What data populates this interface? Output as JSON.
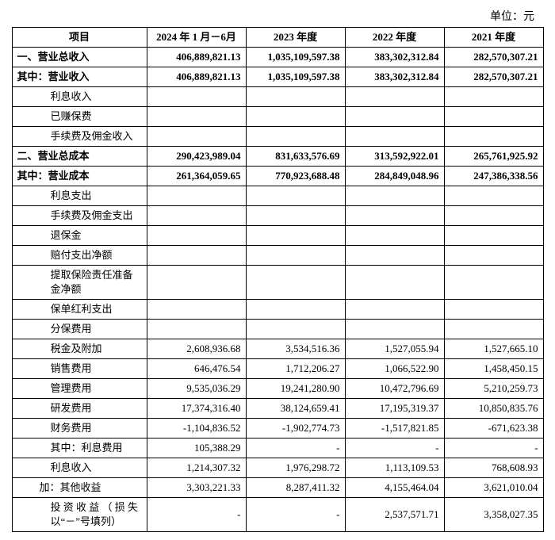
{
  "unit_label": "单位：元",
  "columns": {
    "item": "项目",
    "c1": "2024 年 1 月－6月",
    "c2": "2023 年度",
    "c3": "2022 年度",
    "c4": "2021 年度"
  },
  "rows": [
    {
      "label": "一、营业总收入",
      "bold": true,
      "indent": "ind1",
      "v": [
        "406,889,821.13",
        "1,035,109,597.38",
        "383,302,312.84",
        "282,570,307.21"
      ]
    },
    {
      "label": "其中：营业收入",
      "bold": true,
      "indent": "ind1",
      "v": [
        "406,889,821.13",
        "1,035,109,597.38",
        "383,302,312.84",
        "282,570,307.21"
      ]
    },
    {
      "label": "利息收入",
      "bold": false,
      "indent": "ind2",
      "v": [
        "",
        "",
        "",
        ""
      ]
    },
    {
      "label": "已赚保费",
      "bold": false,
      "indent": "ind2",
      "v": [
        "",
        "",
        "",
        ""
      ]
    },
    {
      "label": "手续费及佣金收入",
      "bold": false,
      "indent": "ind2",
      "v": [
        "",
        "",
        "",
        ""
      ]
    },
    {
      "label": "二、营业总成本",
      "bold": true,
      "indent": "ind1",
      "v": [
        "290,423,989.04",
        "831,633,576.69",
        "313,592,922.01",
        "265,761,925.92"
      ]
    },
    {
      "label": "其中：营业成本",
      "bold": true,
      "indent": "ind1",
      "v": [
        "261,364,059.65",
        "770,923,688.48",
        "284,849,048.96",
        "247,386,338.56"
      ]
    },
    {
      "label": "利息支出",
      "bold": false,
      "indent": "ind2",
      "v": [
        "",
        "",
        "",
        ""
      ]
    },
    {
      "label": "手续费及佣金支出",
      "bold": false,
      "indent": "ind2",
      "v": [
        "",
        "",
        "",
        ""
      ]
    },
    {
      "label": "退保金",
      "bold": false,
      "indent": "ind2",
      "v": [
        "",
        "",
        "",
        ""
      ]
    },
    {
      "label": "赔付支出净额",
      "bold": false,
      "indent": "ind2",
      "v": [
        "",
        "",
        "",
        ""
      ]
    },
    {
      "label": "提取保险责任准备金净额",
      "bold": false,
      "indent": "ind2",
      "tall": true,
      "v": [
        "",
        "",
        "",
        ""
      ]
    },
    {
      "label": "保单红利支出",
      "bold": false,
      "indent": "ind2",
      "v": [
        "",
        "",
        "",
        ""
      ]
    },
    {
      "label": "分保费用",
      "bold": false,
      "indent": "ind2",
      "v": [
        "",
        "",
        "",
        ""
      ]
    },
    {
      "label": "税金及附加",
      "bold": false,
      "indent": "ind2",
      "v": [
        "2,608,936.68",
        "3,534,516.36",
        "1,527,055.94",
        "1,527,665.10"
      ]
    },
    {
      "label": "销售费用",
      "bold": false,
      "indent": "ind2",
      "v": [
        "646,476.54",
        "1,712,206.27",
        "1,066,522.90",
        "1,458,450.15"
      ]
    },
    {
      "label": "管理费用",
      "bold": false,
      "indent": "ind2",
      "v": [
        "9,535,036.29",
        "19,241,280.90",
        "10,472,796.69",
        "5,210,259.73"
      ]
    },
    {
      "label": "研发费用",
      "bold": false,
      "indent": "ind2",
      "v": [
        "17,374,316.40",
        "38,124,659.41",
        "17,195,319.37",
        "10,850,835.76"
      ]
    },
    {
      "label": "财务费用",
      "bold": false,
      "indent": "ind2",
      "v": [
        "-1,104,836.52",
        "-1,902,774.73",
        "-1,517,821.85",
        "-671,623.38"
      ]
    },
    {
      "label": "其中：利息费用",
      "bold": false,
      "indent": "ind2",
      "v": [
        "105,388.29",
        "-",
        "-",
        "-"
      ]
    },
    {
      "label": "利息收入",
      "bold": false,
      "indent": "ind-sp2",
      "v": [
        "1,214,307.32",
        "1,976,298.72",
        "1,113,109.53",
        "768,608.93"
      ]
    },
    {
      "label": "加：其他收益",
      "bold": false,
      "indent": "ind-sp",
      "v": [
        "3,303,221.33",
        "8,287,411.32",
        "4,155,464.04",
        "3,621,010.04"
      ]
    },
    {
      "label": "投 资 收 益 （ 损 失 以“－”号填列）",
      "bold": false,
      "indent": "ind-sp2",
      "tall": true,
      "v": [
        "-",
        "-",
        "2,537,571.71",
        "3,358,027.35"
      ]
    }
  ]
}
